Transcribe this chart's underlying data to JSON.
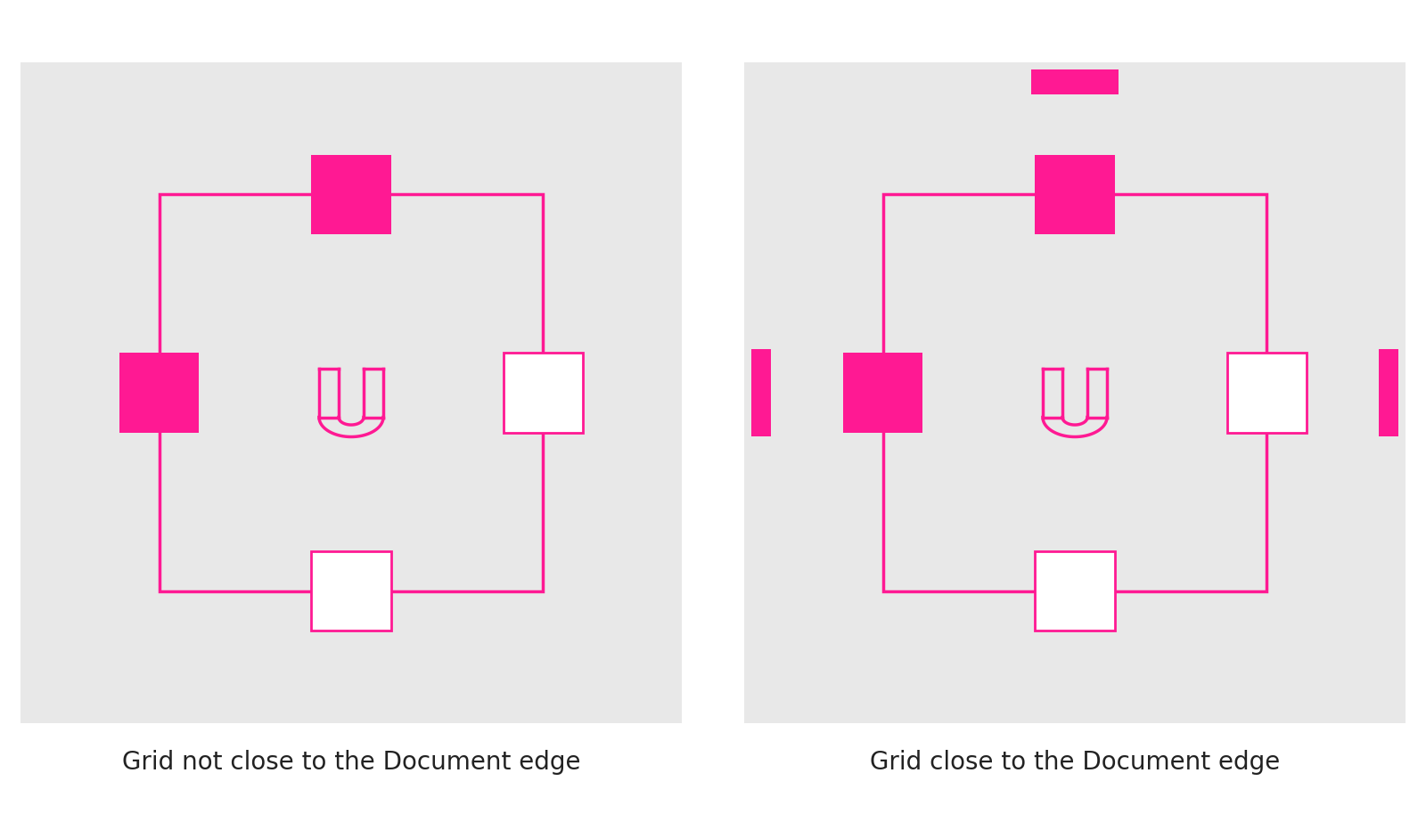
{
  "bg_color": "#ffffff",
  "panel_color": "#e8e8e8",
  "pink": "#FF1993",
  "label1": "Grid not close to the Document edge",
  "label2": "Grid close to the Document edge",
  "label_fontsize": 20,
  "fig_w": 16.0,
  "fig_h": 9.32,
  "dpi": 100
}
